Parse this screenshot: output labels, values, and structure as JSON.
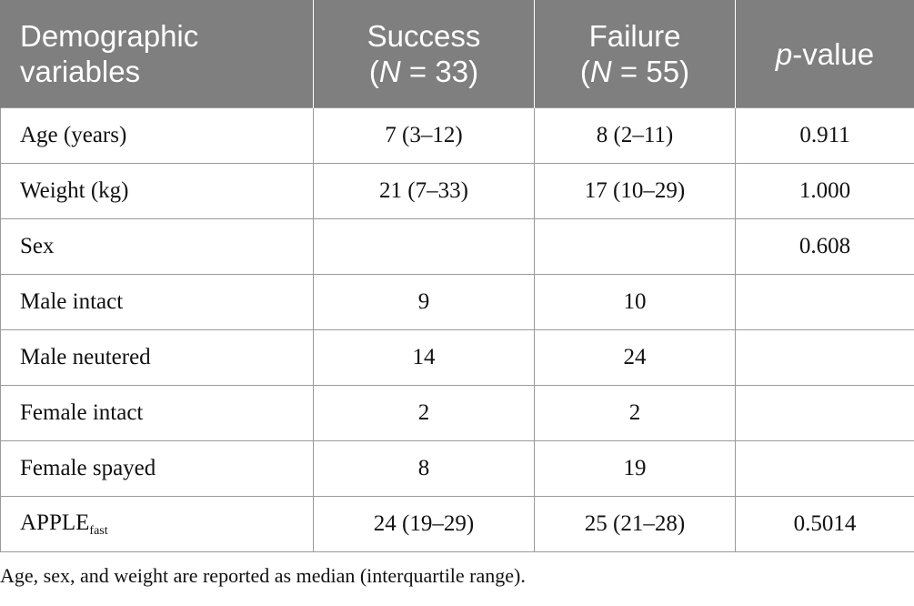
{
  "table": {
    "header": {
      "col1": {
        "line1": "Demographic",
        "line2": "variables"
      },
      "col2": {
        "line1": "Success",
        "n_symbol": "N",
        "n_value": " = 33"
      },
      "col3": {
        "line1": "Failure",
        "n_symbol": "N",
        "n_value": " = 55"
      },
      "col4": {
        "p_symbol": "p",
        "rest": "-value"
      }
    },
    "rows": [
      {
        "variable": "Age (years)",
        "success": "7 (3–12)",
        "failure": "8 (2–11)",
        "p_value": "0.911"
      },
      {
        "variable": "Weight (kg)",
        "success": "21 (7–33)",
        "failure": "17 (10–29)",
        "p_value": "1.000"
      },
      {
        "variable": "Sex",
        "success": "",
        "failure": "",
        "p_value": "0.608"
      },
      {
        "variable": "Male intact",
        "success": "9",
        "failure": "10",
        "p_value": ""
      },
      {
        "variable": "Male neutered",
        "success": "14",
        "failure": "24",
        "p_value": ""
      },
      {
        "variable": "Female intact",
        "success": "2",
        "failure": "2",
        "p_value": ""
      },
      {
        "variable": "Female spayed",
        "success": "8",
        "failure": "19",
        "p_value": ""
      },
      {
        "variable": "APPLE",
        "variable_subscript": "fast",
        "success": "24 (19–29)",
        "failure": "25 (21–28)",
        "p_value": "0.5014"
      }
    ]
  },
  "footnote": "Age, sex, and weight are reported as median (interquartile range)."
}
